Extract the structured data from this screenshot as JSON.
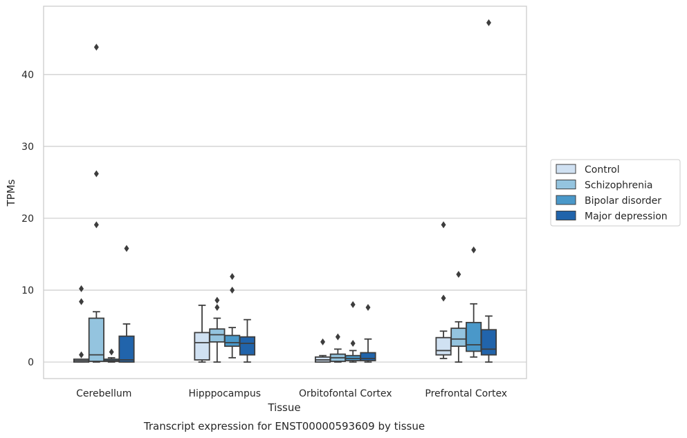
{
  "caption": "Transcript expression for ENST00000593609 by tissue",
  "chart_data": {
    "type": "box",
    "xlabel": "Tissue",
    "ylabel": "TPMs",
    "ylim": [
      -2.3,
      49.5
    ],
    "yticks": [
      0,
      10,
      20,
      30,
      40
    ],
    "grid": "horizontal",
    "legend_placement": "right-center",
    "categories": [
      "Cerebellum",
      "Hipppocampus",
      "Orbitofontal Cortex",
      "Prefrontal Cortex"
    ],
    "series": [
      {
        "name": "Control",
        "color": "#d0e1f2",
        "boxes": [
          {
            "min": 0,
            "q1": 0,
            "median": 0.2,
            "q3": 0.4,
            "max": 0.4,
            "outliers": [
              1.0,
              8.4,
              10.2
            ]
          },
          {
            "min": 0,
            "q1": 0.3,
            "median": 2.7,
            "q3": 4.1,
            "max": 7.9,
            "outliers": []
          },
          {
            "min": 0,
            "q1": 0,
            "median": 0.3,
            "q3": 0.7,
            "max": 0.9,
            "outliers": [
              2.8
            ]
          },
          {
            "min": 0.5,
            "q1": 1.0,
            "median": 1.6,
            "q3": 3.4,
            "max": 4.3,
            "outliers": [
              8.9,
              19.1
            ]
          }
        ]
      },
      {
        "name": "Schizophrenia",
        "color": "#94c4df",
        "boxes": [
          {
            "min": 0,
            "q1": 0.1,
            "median": 1.0,
            "q3": 6.1,
            "max": 7.0,
            "outliers": [
              19.1,
              26.2,
              43.8
            ]
          },
          {
            "min": 0,
            "q1": 2.8,
            "median": 3.8,
            "q3": 4.6,
            "max": 6.1,
            "outliers": [
              7.6,
              8.6
            ]
          },
          {
            "min": 0,
            "q1": 0.1,
            "median": 0.6,
            "q3": 1.1,
            "max": 1.8,
            "outliers": [
              3.5
            ]
          },
          {
            "min": 0,
            "q1": 2.2,
            "median": 3.2,
            "q3": 4.7,
            "max": 5.6,
            "outliers": [
              12.2
            ]
          }
        ]
      },
      {
        "name": "Bipolar disorder",
        "color": "#4a98c9",
        "boxes": [
          {
            "min": 0,
            "q1": 0.1,
            "median": 0.2,
            "q3": 0.4,
            "max": 0.6,
            "outliers": [
              1.4
            ]
          },
          {
            "min": 0.6,
            "q1": 2.2,
            "median": 2.7,
            "q3": 3.7,
            "max": 4.8,
            "outliers": [
              10.0,
              11.9
            ]
          },
          {
            "min": 0,
            "q1": 0.2,
            "median": 0.5,
            "q3": 0.9,
            "max": 1.6,
            "outliers": [
              2.6,
              8.0
            ]
          },
          {
            "min": 0.7,
            "q1": 1.5,
            "median": 2.4,
            "q3": 5.5,
            "max": 8.1,
            "outliers": [
              15.6
            ]
          }
        ]
      },
      {
        "name": "Major depression",
        "color": "#2164ab",
        "boxes": [
          {
            "min": 0,
            "q1": 0,
            "median": 0.3,
            "q3": 3.6,
            "max": 5.3,
            "outliers": [
              15.8
            ]
          },
          {
            "min": 0,
            "q1": 1.0,
            "median": 2.6,
            "q3": 3.5,
            "max": 5.9,
            "outliers": []
          },
          {
            "min": 0,
            "q1": 0.2,
            "median": 0.5,
            "q3": 1.3,
            "max": 3.2,
            "outliers": [
              7.6
            ]
          },
          {
            "min": 0,
            "q1": 1.0,
            "median": 1.8,
            "q3": 4.5,
            "max": 6.4,
            "outliers": [
              47.2
            ]
          }
        ]
      }
    ]
  }
}
